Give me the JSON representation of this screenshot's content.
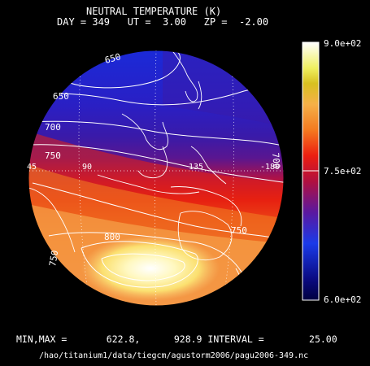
{
  "header": {
    "title": "NEUTRAL TEMPERATURE (K)",
    "subtitle": "DAY = 349   UT =  3.00   ZP =  -2.00"
  },
  "colorbar": {
    "max_label": "9.0e+02",
    "mid_label": "7.5e+02",
    "min_label": "6.0e+02",
    "min": 600,
    "mid": 750,
    "max": 900
  },
  "map": {
    "contour_labels": [
      "650",
      "650",
      "700",
      "700",
      "750",
      "750",
      "800",
      "750"
    ],
    "lon_labels": [
      "45",
      "90",
      "135",
      "-180"
    ]
  },
  "footer": {
    "stats": "MIN,MAX =       622.8,      928.9 INTERVAL =        25.00",
    "path": "/hao/titanium1/data/tiegcm/agustorm2006/pagu2006-349.nc"
  },
  "colors": {
    "background": "#000000",
    "foreground": "#ffffff"
  }
}
